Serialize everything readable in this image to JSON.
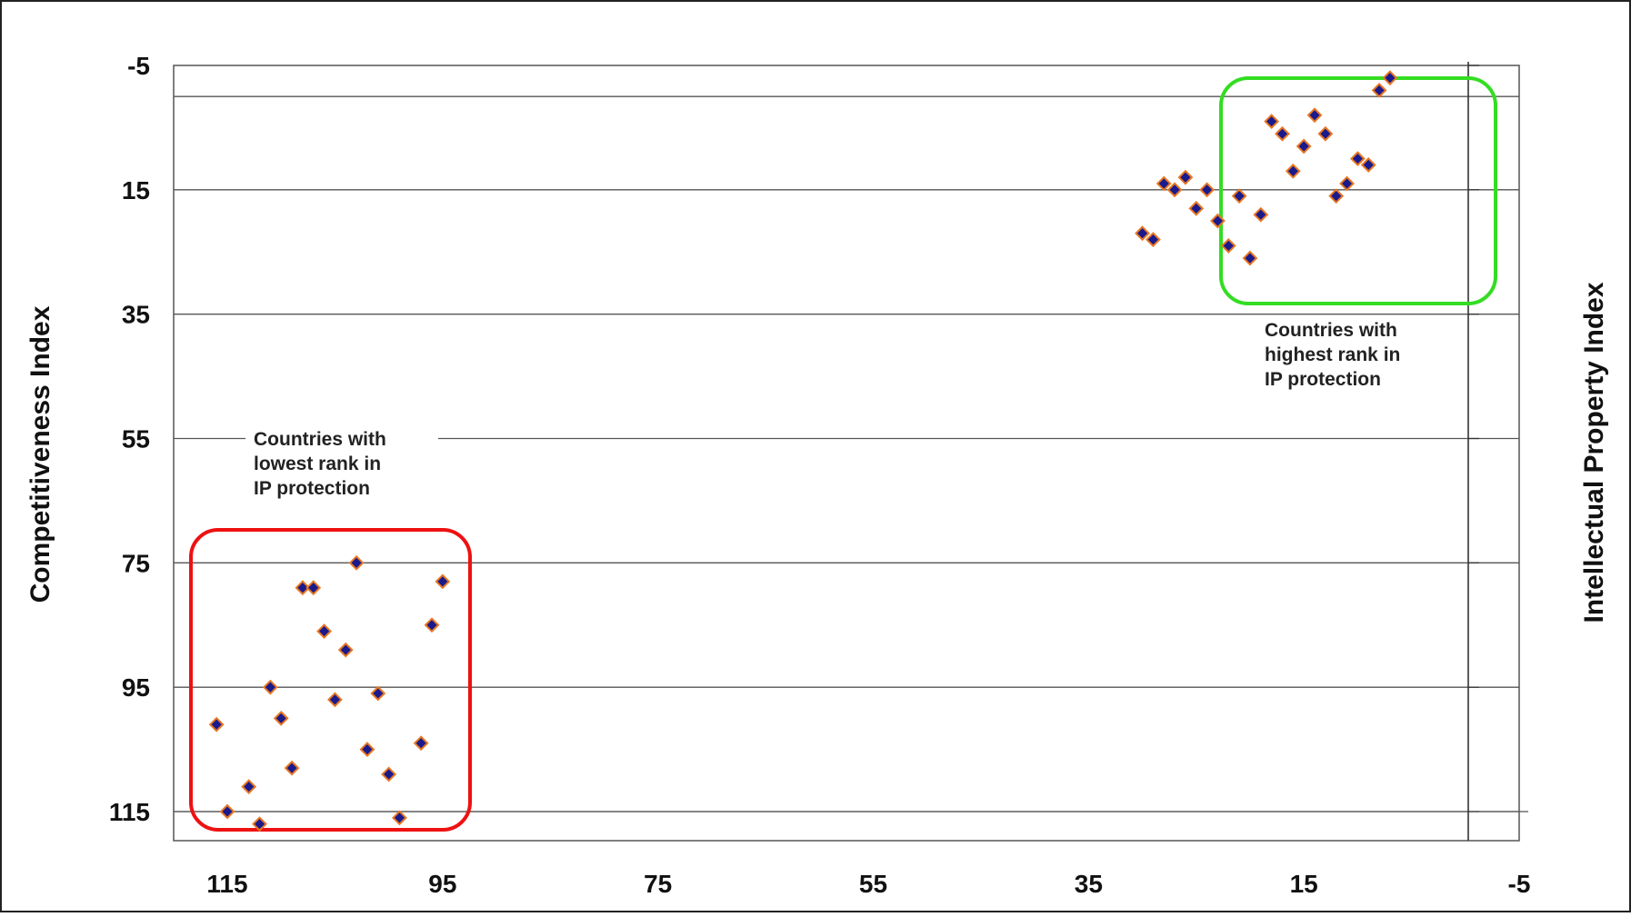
{
  "chart_data": {
    "type": "scatter",
    "title": "",
    "ylabel": "Competitiveness Index",
    "y2label": "Intellectual Property Index",
    "xlim": [
      119,
      -5
    ],
    "ylim": [
      -5,
      119
    ],
    "x_reversed": true,
    "y_reversed": true,
    "x_ticks": [
      "115",
      "95",
      "75",
      "55",
      "35",
      "15",
      "-5"
    ],
    "y_ticks": [
      "-5",
      "15",
      "35",
      "55",
      "75",
      "95",
      "115"
    ],
    "grid": "horizontal",
    "legend": "none",
    "colors": {
      "marker": "#1a1a8c",
      "marker_edge": "#e87722",
      "high_box": "#33dd22",
      "low_box": "#ee1111"
    },
    "series": [
      {
        "values": [
          [
            115,
            115
          ],
          [
            112,
            117
          ],
          [
            113,
            111
          ],
          [
            116,
            101
          ],
          [
            109,
            108
          ],
          [
            110,
            100
          ],
          [
            111,
            95
          ],
          [
            108,
            79
          ],
          [
            107,
            79
          ],
          [
            106,
            86
          ],
          [
            104,
            89
          ],
          [
            105,
            97
          ],
          [
            103,
            75
          ],
          [
            102,
            105
          ],
          [
            101,
            96
          ],
          [
            100,
            109
          ],
          [
            99,
            116
          ],
          [
            97,
            104
          ],
          [
            96,
            85
          ],
          [
            95,
            78
          ]
        ]
      },
      {
        "values": [
          [
            7,
            -3
          ],
          [
            8,
            -1
          ],
          [
            9,
            11
          ],
          [
            10,
            10
          ],
          [
            11,
            14
          ],
          [
            12,
            16
          ],
          [
            13,
            6
          ],
          [
            14,
            3
          ],
          [
            15,
            8
          ],
          [
            16,
            12
          ],
          [
            17,
            6
          ],
          [
            18,
            4
          ],
          [
            19,
            19
          ],
          [
            20,
            26
          ],
          [
            21,
            16
          ],
          [
            22,
            24
          ],
          [
            23,
            20
          ],
          [
            24,
            15
          ],
          [
            25,
            18
          ],
          [
            26,
            13
          ],
          [
            27,
            15
          ],
          [
            28,
            14
          ],
          [
            29,
            23
          ],
          [
            30,
            22
          ]
        ]
      }
    ],
    "annotations": {
      "high": [
        "Countries with",
        "highest rank in",
        "IP protection"
      ],
      "low": [
        "Countries with",
        "lowest rank in",
        "IP protection"
      ]
    }
  }
}
